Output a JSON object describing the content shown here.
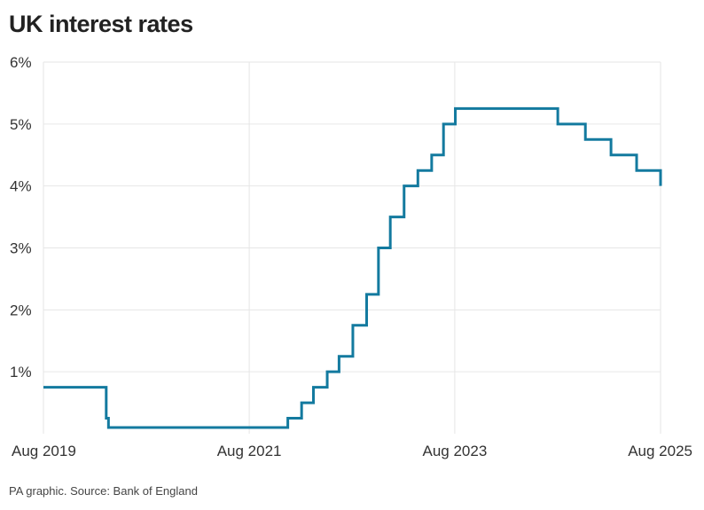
{
  "title": "UK interest rates",
  "source": "PA graphic. Source: Bank of England",
  "colors": {
    "line": "#137a9f",
    "grid": "#e6e6e6",
    "text": "#333333"
  },
  "chart_data": {
    "type": "line",
    "step": true,
    "title": "UK interest rates",
    "xlabel": "",
    "ylabel": "",
    "xlim": [
      "2019-08-01",
      "2025-08-01"
    ],
    "ylim": [
      0,
      6
    ],
    "grid": true,
    "legend": "none",
    "x_ticks": [
      "Aug 2019",
      "Aug 2021",
      "Aug 2023",
      "Aug 2025"
    ],
    "y_ticks": [
      "1%",
      "2%",
      "3%",
      "4%",
      "5%",
      "6%"
    ],
    "y_tick_values": [
      1,
      2,
      3,
      4,
      5,
      6
    ],
    "series": [
      {
        "points": [
          [
            "2019-08-01",
            0.75
          ],
          [
            "2020-03-11",
            0.25
          ],
          [
            "2020-03-19",
            0.1
          ],
          [
            "2021-12-16",
            0.25
          ],
          [
            "2022-02-03",
            0.5
          ],
          [
            "2022-03-17",
            0.75
          ],
          [
            "2022-05-05",
            1.0
          ],
          [
            "2022-06-16",
            1.25
          ],
          [
            "2022-08-04",
            1.75
          ],
          [
            "2022-09-22",
            2.25
          ],
          [
            "2022-11-03",
            3.0
          ],
          [
            "2022-12-15",
            3.5
          ],
          [
            "2023-02-02",
            4.0
          ],
          [
            "2023-03-23",
            4.25
          ],
          [
            "2023-05-11",
            4.5
          ],
          [
            "2023-06-22",
            5.0
          ],
          [
            "2023-08-03",
            5.25
          ],
          [
            "2024-08-01",
            5.0
          ],
          [
            "2024-11-07",
            4.75
          ],
          [
            "2025-02-06",
            4.5
          ],
          [
            "2025-05-08",
            4.25
          ],
          [
            "2025-08-01",
            4.0
          ]
        ]
      }
    ]
  }
}
